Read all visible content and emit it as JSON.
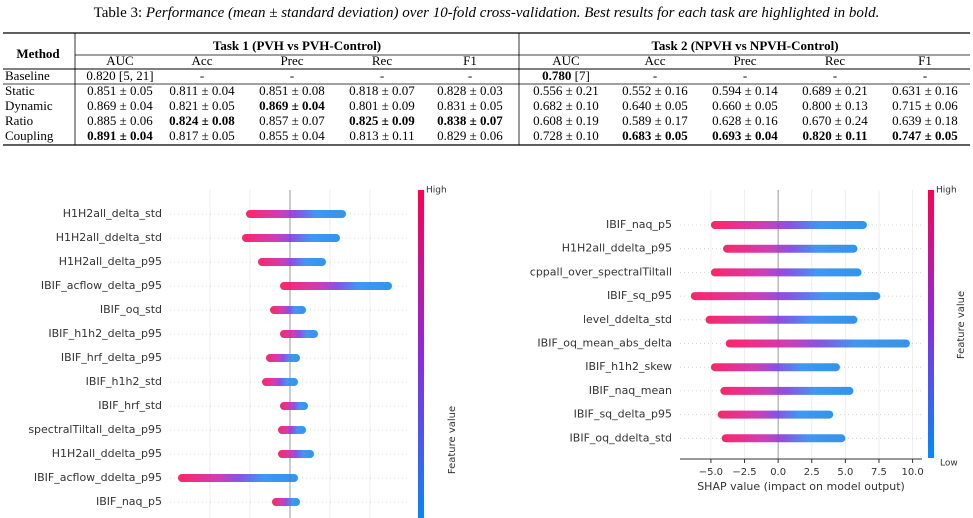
{
  "caption": {
    "label": "Table 3:",
    "text": "Performance (mean ± standard deviation) over 10-fold cross-validation. Best results for each task are highlighted in bold."
  },
  "table": {
    "corner": "Method",
    "groups": [
      "Task 1 (PVH vs PVH-Control)",
      "Task 2 (NPVH vs NPVH-Control)"
    ],
    "columns": [
      "AUC",
      "Acc",
      "Prec",
      "Rec",
      "F1",
      "AUC",
      "Acc",
      "Prec",
      "Rec",
      "F1"
    ],
    "rows": [
      [
        "Baseline",
        "0.820 [5, 21]",
        "-",
        "-",
        "-",
        "-",
        [
          {
            "bold": "0.780"
          },
          " [7]"
        ],
        "-",
        "-",
        "-",
        "-"
      ],
      [
        "Static",
        "0.851 ± 0.05",
        "0.811 ± 0.04",
        "0.851 ± 0.08",
        "0.818 ± 0.07",
        "0.828 ± 0.03",
        "0.556 ± 0.21",
        "0.552 ± 0.16",
        "0.594 ± 0.14",
        "0.689 ± 0.21",
        "0.631 ± 0.16"
      ],
      [
        "Dynamic",
        "0.869 ± 0.04",
        "0.821 ± 0.05",
        {
          "bold": "0.869 ± 0.04"
        },
        "0.801 ± 0.09",
        "0.831 ± 0.05",
        "0.682 ± 0.10",
        "0.640 ± 0.05",
        "0.660 ± 0.05",
        "0.800 ± 0.13",
        "0.715 ± 0.06"
      ],
      [
        "Ratio",
        "0.885 ± 0.06",
        {
          "bold": "0.824 ± 0.08"
        },
        "0.857 ± 0.07",
        {
          "bold": "0.825 ± 0.09"
        },
        {
          "bold": "0.838 ± 0.07"
        },
        "0.608 ± 0.19",
        "0.589 ± 0.17",
        "0.628 ± 0.16",
        "0.670 ± 0.24",
        "0.639 ± 0.18"
      ],
      [
        "Coupling",
        {
          "bold": "0.891 ± 0.04"
        },
        "0.817 ± 0.05",
        "0.855 ± 0.04",
        "0.813 ± 0.11",
        "0.829 ± 0.06",
        "0.728 ± 0.10",
        {
          "bold": "0.683 ± 0.05"
        },
        {
          "bold": "0.693 ± 0.04"
        },
        {
          "bold": "0.820 ± 0.11"
        },
        {
          "bold": "0.747 ± 0.05"
        }
      ]
    ]
  },
  "shap_left": {
    "features": [
      "H1H2all_delta_std",
      "H1H2all_ddelta_std",
      "H1H2all_delta_p95",
      "IBIF_acflow_delta_p95",
      "IBIF_oq_std",
      "IBIF_h1h2_delta_p95",
      "IBIF_hrf_delta_p95",
      "IBIF_h1h2_std",
      "IBIF_hrf_std",
      "spectralTiltall_delta_p95",
      "H1H2all_ddelta_p95",
      "IBIF_acflow_ddelta_p95",
      "IBIF_naq_p5"
    ],
    "ranges": [
      [
        -1.1,
        1.4
      ],
      [
        -1.2,
        1.25
      ],
      [
        -0.8,
        0.9
      ],
      [
        -0.25,
        2.55
      ],
      [
        -0.5,
        0.4
      ],
      [
        -0.25,
        0.7
      ],
      [
        -0.6,
        0.25
      ],
      [
        -0.7,
        0.2
      ],
      [
        -0.25,
        0.45
      ],
      [
        -0.3,
        0.4
      ],
      [
        -0.3,
        0.6
      ],
      [
        -2.8,
        0.2
      ],
      [
        -0.45,
        0.25
      ]
    ],
    "xlim": [
      -3,
      3
    ],
    "grid_lines": [
      -2,
      -1,
      0,
      1,
      2
    ],
    "colorbar_high": "High",
    "colorbar_label": "Feature value"
  },
  "shap_right": {
    "features": [
      "IBIF_naq_p5",
      "H1H2all_ddelta_p95",
      "cppall_over_spectralTiltall",
      "IBIF_sq_p95",
      "level_ddelta_std",
      "IBIF_oq_mean_abs_delta",
      "IBIF_h1h2_skew",
      "IBIF_naq_mean",
      "IBIF_sq_delta_p95",
      "IBIF_oq_ddelta_std"
    ],
    "ranges": [
      [
        -5.0,
        6.6
      ],
      [
        -4.1,
        5.9
      ],
      [
        -5.0,
        6.2
      ],
      [
        -6.5,
        7.6
      ],
      [
        -5.4,
        5.9
      ],
      [
        -3.9,
        9.8
      ],
      [
        -5.0,
        4.6
      ],
      [
        -4.3,
        5.6
      ],
      [
        -4.5,
        4.1
      ],
      [
        -4.2,
        5.0
      ]
    ],
    "xlim": [
      -7.3,
      10.7
    ],
    "xticks": [
      {
        "value": -5,
        "label": "−5.0"
      },
      {
        "value": -2.5,
        "label": "−2.5"
      },
      {
        "value": 0,
        "label": "0.0"
      },
      {
        "value": 2.5,
        "label": "2.5"
      },
      {
        "value": 5,
        "label": "5.0"
      },
      {
        "value": 7.5,
        "label": "7.5"
      },
      {
        "value": 10,
        "label": "10.0"
      }
    ],
    "xlabel": "SHAP value (impact on model output)",
    "colorbar_high": "High",
    "colorbar_low": "Low",
    "colorbar_label": "Feature value"
  }
}
